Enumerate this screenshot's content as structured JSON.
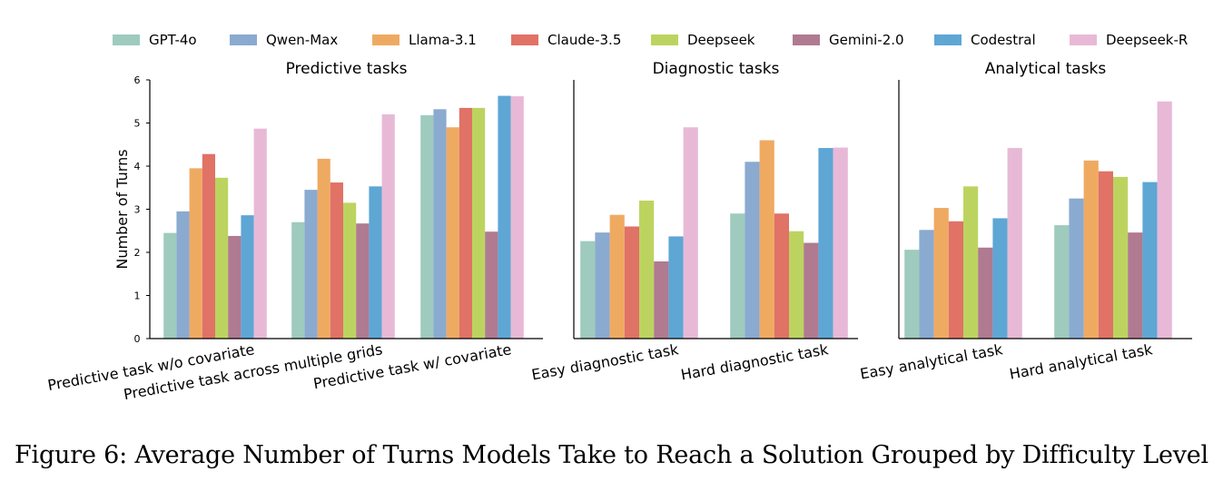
{
  "figure": {
    "caption": "Figure 6: Average Number of Turns Models Take to Reach a Solution Grouped by Difficulty Level"
  },
  "legend": {
    "position": "top",
    "items": [
      {
        "label": "GPT-4o",
        "color": "#9ecbbd"
      },
      {
        "label": "Qwen-Max",
        "color": "#8aaad0"
      },
      {
        "label": "Llama-3.1",
        "color": "#efaa62"
      },
      {
        "label": "Claude-3.5",
        "color": "#e07266"
      },
      {
        "label": "Deepseek",
        "color": "#bcd45f"
      },
      {
        "label": "Gemini-2.0",
        "color": "#b07a90"
      },
      {
        "label": "Codestral",
        "color": "#5ea6d4"
      },
      {
        "label": "Deepseek-R",
        "color": "#e8b9d6"
      }
    ]
  },
  "chart_data": [
    {
      "type": "bar",
      "title": "Predictive tasks",
      "ylabel": "Number of Turns",
      "ylim": [
        0,
        6
      ],
      "yticks": [
        0,
        1,
        2,
        3,
        4,
        5,
        6
      ],
      "categories": [
        "Predictive task w/o covariate",
        "Predictive task across multiple grids",
        "Predictive task w/ covariate"
      ],
      "series": [
        {
          "name": "GPT-4o",
          "values": [
            2.45,
            2.7,
            5.18
          ]
        },
        {
          "name": "Qwen-Max",
          "values": [
            2.95,
            3.45,
            5.32
          ]
        },
        {
          "name": "Llama-3.1",
          "values": [
            3.95,
            4.17,
            4.9
          ]
        },
        {
          "name": "Claude-3.5",
          "values": [
            4.28,
            3.62,
            5.35
          ]
        },
        {
          "name": "Deepseek",
          "values": [
            3.73,
            3.15,
            5.35
          ]
        },
        {
          "name": "Gemini-2.0",
          "values": [
            2.38,
            2.67,
            2.48
          ]
        },
        {
          "name": "Codestral",
          "values": [
            2.86,
            3.53,
            5.63
          ]
        },
        {
          "name": "Deepseek-R",
          "values": [
            4.87,
            5.2,
            5.62
          ]
        }
      ]
    },
    {
      "type": "bar",
      "title": "Diagnostic tasks",
      "ylim": [
        0,
        6
      ],
      "categories": [
        "Easy diagnostic task",
        "Hard diagnostic task"
      ],
      "series": [
        {
          "name": "GPT-4o",
          "values": [
            2.26,
            2.9
          ]
        },
        {
          "name": "Qwen-Max",
          "values": [
            2.46,
            4.1
          ]
        },
        {
          "name": "Llama-3.1",
          "values": [
            2.87,
            4.6
          ]
        },
        {
          "name": "Claude-3.5",
          "values": [
            2.6,
            2.9
          ]
        },
        {
          "name": "Deepseek",
          "values": [
            3.2,
            2.49
          ]
        },
        {
          "name": "Gemini-2.0",
          "values": [
            1.79,
            2.22
          ]
        },
        {
          "name": "Codestral",
          "values": [
            2.37,
            4.42
          ]
        },
        {
          "name": "Deepseek-R",
          "values": [
            4.9,
            4.43
          ]
        }
      ]
    },
    {
      "type": "bar",
      "title": "Analytical tasks",
      "ylim": [
        0,
        6
      ],
      "categories": [
        "Easy analytical task",
        "Hard analytical task"
      ],
      "series": [
        {
          "name": "GPT-4o",
          "values": [
            2.06,
            2.63
          ]
        },
        {
          "name": "Qwen-Max",
          "values": [
            2.52,
            3.25
          ]
        },
        {
          "name": "Llama-3.1",
          "values": [
            3.03,
            4.13
          ]
        },
        {
          "name": "Claude-3.5",
          "values": [
            2.72,
            3.88
          ]
        },
        {
          "name": "Deepseek",
          "values": [
            3.53,
            3.75
          ]
        },
        {
          "name": "Gemini-2.0",
          "values": [
            2.11,
            2.46
          ]
        },
        {
          "name": "Codestral",
          "values": [
            2.79,
            3.63
          ]
        },
        {
          "name": "Deepseek-R",
          "values": [
            4.42,
            5.5
          ]
        }
      ]
    }
  ]
}
